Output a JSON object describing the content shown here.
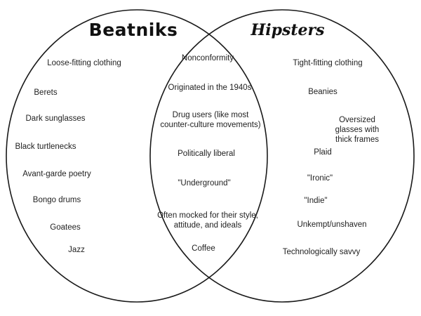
{
  "diagram": {
    "left_title": "Beatniks",
    "right_title": "Hipsters",
    "left_items": [
      "Loose-fitting clothing",
      "Berets",
      "Dark sunglasses",
      "Black turtlenecks",
      "Avant-garde poetry",
      "Bongo drums",
      "Goatees",
      "Jazz"
    ],
    "shared_items": [
      "Nonconformity",
      "Originated in the 1940s",
      "Drug users (like most\ncounter-culture movements)",
      "Politically liberal",
      "\"Underground\"",
      "Often mocked for their style,\nattitude, and ideals",
      "Coffee"
    ],
    "right_items": [
      "Tight-fitting clothing",
      "Beanies",
      "Oversized glasses with\nthick frames",
      "Plaid",
      "\"Ironic\"",
      "\"Indie\"",
      "Unkempt/unshaven",
      "Technologically savvy"
    ],
    "colors": {
      "outline": "#1a1a1a",
      "text": "#222222",
      "background": "#ffffff"
    }
  }
}
